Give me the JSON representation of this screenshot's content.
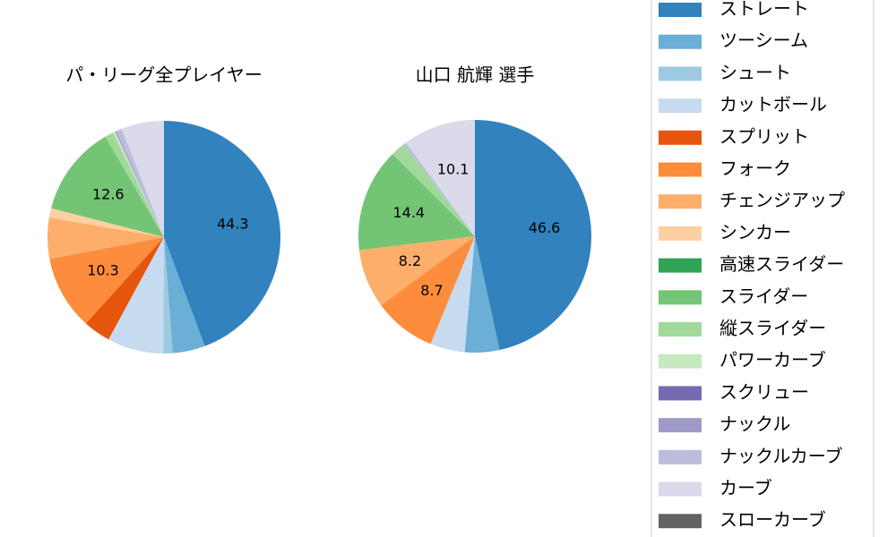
{
  "chart_data": [
    {
      "type": "pie",
      "title": "パ・リーグ全プレイヤー",
      "categories": [
        "ストレート",
        "ツーシーム",
        "シュート",
        "カットボール",
        "スプリット",
        "フォーク",
        "チェンジアップ",
        "シンカー",
        "高速スライダー",
        "スライダー",
        "縦スライダー",
        "パワーカーブ",
        "スクリュー",
        "ナックル",
        "ナックルカーブ",
        "カーブ",
        "スローカーブ"
      ],
      "values": [
        44.3,
        4.5,
        1.3,
        7.8,
        3.8,
        10.3,
        5.7,
        1.3,
        0,
        12.6,
        1.2,
        0.3,
        0,
        0.2,
        0.8,
        5.9,
        0
      ],
      "value_labels": [
        "44.3",
        null,
        null,
        null,
        null,
        "10.3",
        null,
        null,
        null,
        "12.6",
        null,
        null,
        null,
        null,
        null,
        null,
        null
      ],
      "colors": [
        "#3182bd",
        "#6baed6",
        "#9ecae1",
        "#c6dbef",
        "#e6550d",
        "#fd8d3c",
        "#fdae6b",
        "#fdd0a2",
        "#31a354",
        "#74c476",
        "#a1d99b",
        "#c7e9c0",
        "#756bb1",
        "#9e9ac8",
        "#bcbddc",
        "#dadaeb",
        "#636363"
      ]
    },
    {
      "type": "pie",
      "title": "山口 航輝  選手",
      "categories": [
        "ストレート",
        "ツーシーム",
        "シュート",
        "カットボール",
        "スプリット",
        "フォーク",
        "チェンジアップ",
        "シンカー",
        "高速スライダー",
        "スライダー",
        "縦スライダー",
        "パワーカーブ",
        "スクリュー",
        "ナックル",
        "ナックルカーブ",
        "カーブ",
        "スローカーブ"
      ],
      "values": [
        46.6,
        4.8,
        0,
        4.8,
        0,
        8.7,
        8.2,
        0,
        0,
        14.4,
        2.0,
        0,
        0,
        0,
        0.4,
        10.1,
        0
      ],
      "value_labels": [
        "46.6",
        null,
        null,
        null,
        null,
        "8.7",
        "8.2",
        null,
        null,
        "14.4",
        null,
        null,
        null,
        null,
        null,
        "10.1",
        null
      ],
      "colors": [
        "#3182bd",
        "#6baed6",
        "#9ecae1",
        "#c6dbef",
        "#e6550d",
        "#fd8d3c",
        "#fdae6b",
        "#fdd0a2",
        "#31a354",
        "#74c476",
        "#a1d99b",
        "#c7e9c0",
        "#756bb1",
        "#9e9ac8",
        "#bcbddc",
        "#dadaeb",
        "#636363"
      ]
    }
  ]
}
